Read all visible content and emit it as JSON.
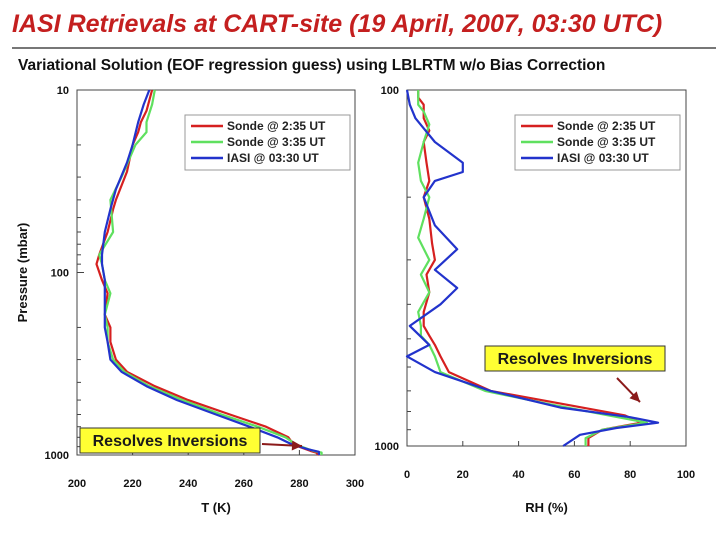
{
  "page": {
    "title": "IASI Retrievals at CART-site (19 April, 2007, 03:30 UTC)",
    "subtitle": "Variational Solution (EOF regression guess) using LBLRTM w/o Bias Correction"
  },
  "chart_data": [
    {
      "type": "line",
      "title": "",
      "xlabel": "T (K)",
      "ylabel": "Pressure (mbar)",
      "xlim": [
        200,
        300
      ],
      "ylim": [
        1000,
        10
      ],
      "y_scale": "log",
      "x_ticks": [
        "200",
        "220",
        "240",
        "260",
        "280",
        "300"
      ],
      "y_ticks": [
        "10",
        "100",
        "1000"
      ],
      "legend_position": "top-right",
      "annotation": "Resolves Inversions",
      "series": [
        {
          "name": "Sonde @ 2:35 UT",
          "color": "#d62020",
          "x": [
            287,
            286,
            284,
            278,
            276,
            268,
            255,
            240,
            228,
            218,
            214,
            212,
            212,
            210,
            211,
            209,
            207,
            208,
            211,
            213,
            214,
            218,
            220,
            222,
            223,
            225,
            227
          ],
          "y": [
            1000,
            970,
            950,
            880,
            800,
            700,
            600,
            500,
            420,
            350,
            300,
            240,
            200,
            170,
            130,
            110,
            90,
            80,
            60,
            45,
            40,
            28,
            20,
            17,
            15,
            13,
            10
          ]
        },
        {
          "name": "Sonde @ 3:35 UT",
          "color": "#5fe05f",
          "x": [
            288,
            288,
            285,
            279,
            275,
            265,
            252,
            238,
            226,
            217,
            213,
            211,
            211,
            210,
            212,
            210,
            209,
            208,
            213,
            212,
            216,
            221,
            225,
            225,
            227,
            228
          ],
          "y": [
            1000,
            970,
            950,
            880,
            800,
            700,
            600,
            500,
            420,
            350,
            300,
            240,
            200,
            170,
            130,
            110,
            90,
            80,
            60,
            40,
            30,
            20,
            17,
            15,
            12,
            10
          ]
        },
        {
          "name": "IASI @ 03:30 UT",
          "color": "#2233cc",
          "x": [
            287,
            287,
            283,
            277,
            272,
            262,
            250,
            236,
            225,
            216,
            212,
            211,
            210,
            210,
            210,
            209,
            209,
            210,
            212,
            214,
            218,
            220,
            222,
            224,
            226
          ],
          "y": [
            1000,
            960,
            930,
            870,
            800,
            700,
            600,
            500,
            420,
            350,
            300,
            240,
            200,
            150,
            110,
            90,
            80,
            60,
            45,
            35,
            25,
            20,
            15,
            12,
            10
          ]
        }
      ]
    },
    {
      "type": "line",
      "title": "",
      "xlabel": "RH (%)",
      "ylabel": "",
      "xlim": [
        0,
        100
      ],
      "ylim": [
        1000,
        100
      ],
      "y_scale": "log",
      "x_ticks": [
        "0",
        "20",
        "40",
        "60",
        "80",
        "100"
      ],
      "y_ticks": [
        "100",
        "1000"
      ],
      "legend_position": "top-right",
      "annotation": "Resolves Inversions",
      "series": [
        {
          "name": "Sonde @ 2:35 UT",
          "color": "#d62020",
          "x": [
            65,
            65,
            70,
            84,
            78,
            55,
            30,
            15,
            12,
            10,
            8,
            6,
            6,
            8,
            7,
            10,
            9,
            8,
            6,
            8,
            7,
            6,
            8,
            6,
            6,
            4,
            4
          ],
          "y": [
            1000,
            950,
            900,
            860,
            820,
            760,
            700,
            620,
            560,
            520,
            490,
            460,
            420,
            370,
            330,
            300,
            270,
            230,
            200,
            180,
            160,
            140,
            130,
            120,
            110,
            105,
            100
          ]
        },
        {
          "name": "Sonde @ 3:35 UT",
          "color": "#5fe05f",
          "x": [
            64,
            64,
            70,
            86,
            72,
            50,
            28,
            12,
            10,
            8,
            5,
            5,
            4,
            8,
            5,
            8,
            4,
            6,
            8,
            5,
            4,
            6,
            8,
            6,
            4,
            4
          ],
          "y": [
            1000,
            950,
            900,
            860,
            820,
            760,
            700,
            620,
            560,
            520,
            490,
            460,
            420,
            370,
            330,
            300,
            260,
            230,
            200,
            180,
            160,
            140,
            125,
            115,
            110,
            100
          ]
        },
        {
          "name": "IASI @ 03:30 UT",
          "color": "#2233cc",
          "x": [
            56,
            62,
            75,
            90,
            80,
            55,
            30,
            10,
            0,
            8,
            1,
            12,
            18,
            10,
            18,
            10,
            6,
            10,
            20,
            20,
            10,
            3,
            1,
            0
          ],
          "y": [
            1000,
            930,
            890,
            860,
            830,
            780,
            700,
            620,
            560,
            520,
            460,
            400,
            360,
            320,
            280,
            240,
            200,
            180,
            170,
            160,
            140,
            120,
            110,
            100
          ]
        }
      ]
    }
  ]
}
